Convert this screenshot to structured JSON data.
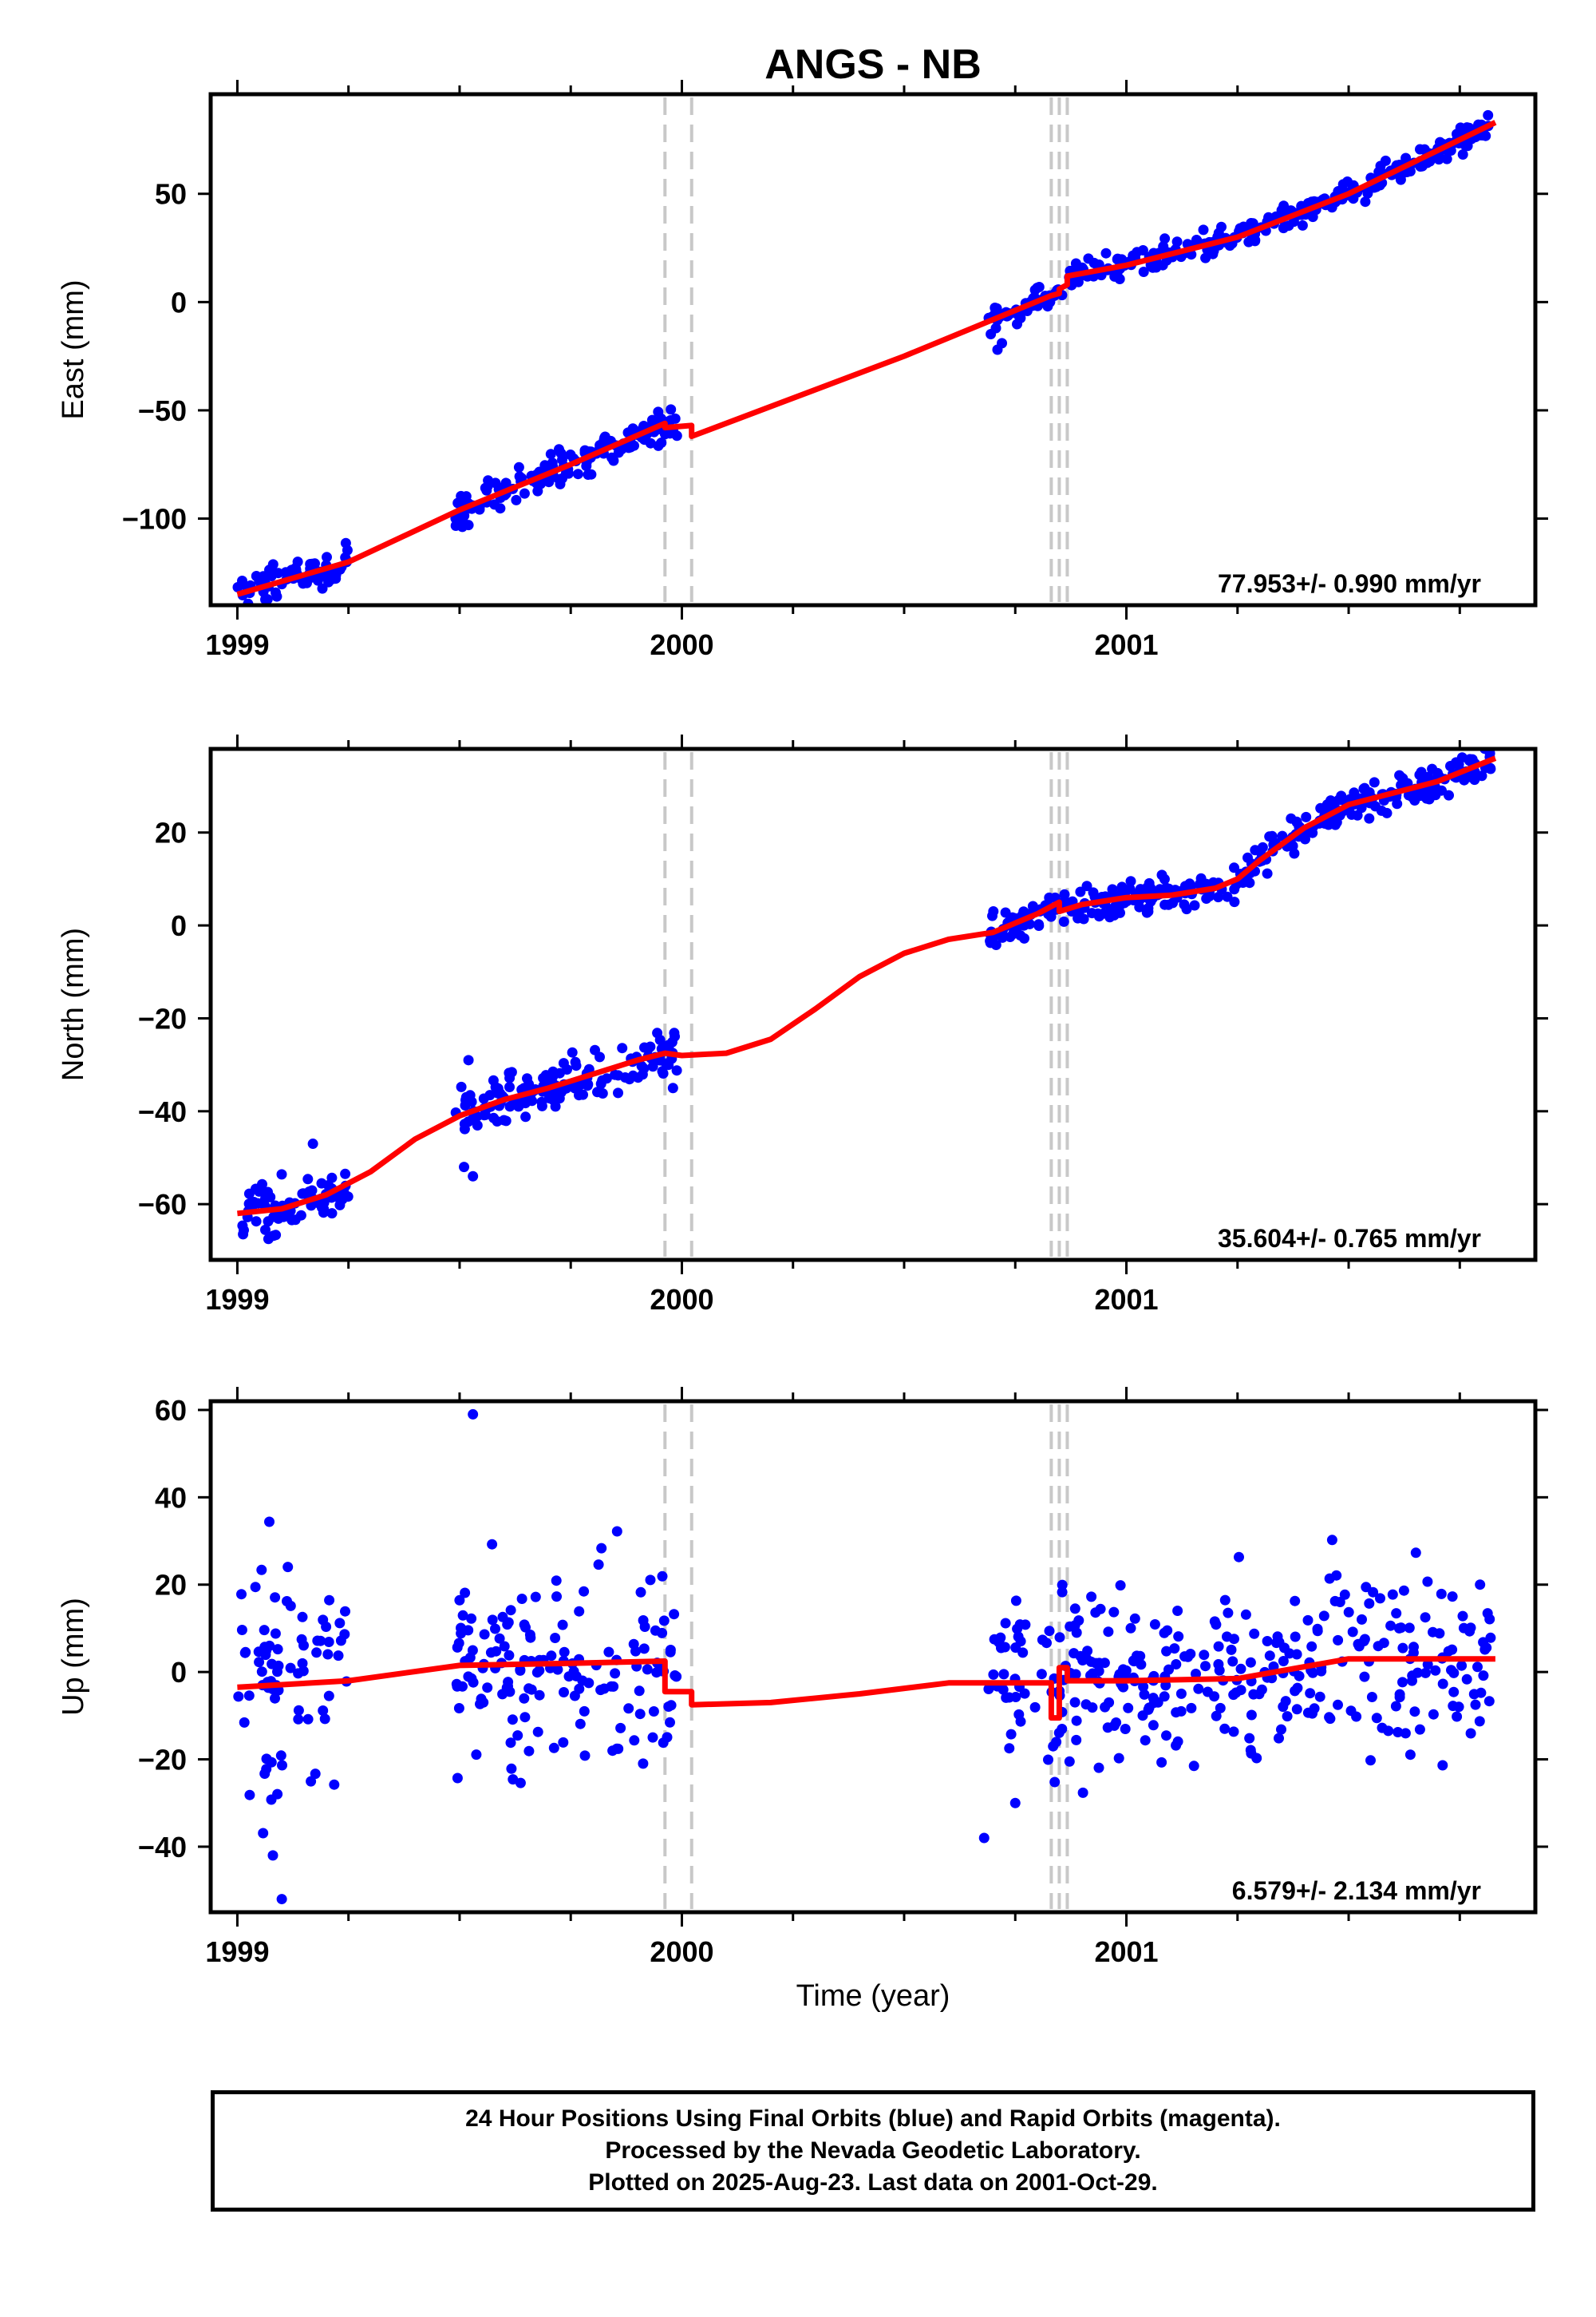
{
  "title": "ANGS - NB",
  "footer": {
    "line1": "24 Hour Positions Using Final Orbits (blue) and Rapid Orbits (magenta).",
    "line2": "Processed by the Nevada Geodetic Laboratory.",
    "line3": "Plotted on 2025-Aug-23. Last data on 2001-Oct-29."
  },
  "colors": {
    "data": "#0000ff",
    "model": "#ff0000",
    "steps": "#c8c8c8"
  },
  "chart_data": {
    "type": "scatter",
    "xlabel": "Time (year)",
    "xlim": [
      1998.94,
      2001.92
    ],
    "xticks": [
      "1999",
      "2000",
      "2001"
    ],
    "step_lines": [
      1999.962,
      2000.022,
      2000.831,
      2000.849,
      2000.867
    ],
    "panels": [
      {
        "ylabel": "East (mm)",
        "ylim": [
          -140,
          96
        ],
        "yticks": [
          50,
          0,
          -50,
          -100
        ],
        "rate_label": "77.953+/- 0.990 mm/yr",
        "data_segments": [
          {
            "start": 1999.0,
            "end": 1999.25,
            "n": 75,
            "noise": 4
          },
          {
            "start": 1999.49,
            "end": 1999.99,
            "n": 150,
            "noise": 4
          },
          {
            "start": 2000.69,
            "end": 2001.82,
            "n": 330,
            "noise": 3
          }
        ],
        "outliers": [
          [
            2000.71,
            -22
          ],
          [
            2000.72,
            -19
          ],
          [
            1999.52,
            -103
          ]
        ],
        "model": [
          [
            1999.0,
            -135
          ],
          [
            1999.25,
            -120
          ],
          [
            1999.5,
            -96
          ],
          [
            1999.75,
            -75
          ],
          [
            1999.962,
            -56
          ],
          [
            1999.962,
            -58
          ],
          [
            2000.022,
            -57
          ],
          [
            2000.022,
            -62
          ],
          [
            2000.5,
            -25
          ],
          [
            2000.831,
            3
          ],
          [
            2000.849,
            4
          ],
          [
            2000.849,
            6
          ],
          [
            2000.867,
            8
          ],
          [
            2000.867,
            12
          ],
          [
            2001.0,
            17
          ],
          [
            2001.25,
            30
          ],
          [
            2001.5,
            50
          ],
          [
            2001.83,
            83
          ]
        ]
      },
      {
        "ylabel": "North (mm)",
        "ylim": [
          -72,
          38
        ],
        "yticks": [
          20,
          0,
          -20,
          -40,
          -60
        ],
        "rate_label": "35.604+/- 0.765 mm/yr",
        "data_segments": [
          {
            "start": 1999.0,
            "end": 1999.25,
            "n": 75,
            "noise": 3
          },
          {
            "start": 1999.49,
            "end": 1999.99,
            "n": 150,
            "noise": 2.5
          },
          {
            "start": 2000.69,
            "end": 2001.82,
            "n": 330,
            "noise": 2
          }
        ],
        "outliers": [
          [
            1999.17,
            -47
          ],
          [
            1999.52,
            -29
          ],
          [
            1999.51,
            -52
          ],
          [
            1999.53,
            -54
          ],
          [
            1999.98,
            -35
          ]
        ],
        "model": [
          [
            1999.0,
            -62
          ],
          [
            1999.1,
            -61
          ],
          [
            1999.2,
            -58
          ],
          [
            1999.3,
            -53
          ],
          [
            1999.4,
            -46
          ],
          [
            1999.5,
            -41
          ],
          [
            1999.6,
            -37.5
          ],
          [
            1999.7,
            -35
          ],
          [
            1999.8,
            -32
          ],
          [
            1999.9,
            -29
          ],
          [
            1999.962,
            -27.5
          ],
          [
            2000.0,
            -28
          ],
          [
            2000.1,
            -27.5
          ],
          [
            2000.2,
            -24.5
          ],
          [
            2000.3,
            -18
          ],
          [
            2000.4,
            -11
          ],
          [
            2000.5,
            -6
          ],
          [
            2000.6,
            -3
          ],
          [
            2000.7,
            -1.5
          ],
          [
            2000.8,
            2.5
          ],
          [
            2000.849,
            5
          ],
          [
            2000.849,
            3
          ],
          [
            2000.9,
            4.5
          ],
          [
            2001.0,
            6
          ],
          [
            2001.1,
            6.5
          ],
          [
            2001.2,
            8
          ],
          [
            2001.25,
            10
          ],
          [
            2001.3,
            14
          ],
          [
            2001.4,
            21
          ],
          [
            2001.5,
            26
          ],
          [
            2001.6,
            28.5
          ],
          [
            2001.7,
            31
          ],
          [
            2001.83,
            36
          ]
        ]
      },
      {
        "ylabel": "Up (mm)",
        "ylim": [
          -55,
          62
        ],
        "yticks": [
          60,
          40,
          20,
          0,
          -20,
          -40
        ],
        "rate_label": "6.579+/- 2.134 mm/yr",
        "data_segments": [
          {
            "start": 1999.0,
            "end": 1999.25,
            "n": 75,
            "noise": 13
          },
          {
            "start": 1999.49,
            "end": 1999.99,
            "n": 150,
            "noise": 11
          },
          {
            "start": 2000.69,
            "end": 2001.82,
            "n": 330,
            "noise": 10
          }
        ],
        "outliers": [
          [
            1999.53,
            59
          ],
          [
            1999.1,
            -52
          ],
          [
            1999.08,
            -42
          ],
          [
            2000.68,
            -38
          ],
          [
            2000.75,
            -30
          ]
        ],
        "model": [
          [
            1999.0,
            -3.5
          ],
          [
            1999.25,
            -2
          ],
          [
            1999.5,
            1.5
          ],
          [
            1999.75,
            2
          ],
          [
            1999.962,
            2.5
          ],
          [
            1999.962,
            -4.5
          ],
          [
            2000.022,
            -4.5
          ],
          [
            2000.022,
            -7.5
          ],
          [
            2000.2,
            -7
          ],
          [
            2000.4,
            -5
          ],
          [
            2000.6,
            -2.5
          ],
          [
            2000.831,
            -2.5
          ],
          [
            2000.831,
            -10.5
          ],
          [
            2000.849,
            -10.5
          ],
          [
            2000.849,
            1
          ],
          [
            2000.867,
            1
          ],
          [
            2000.867,
            -2
          ],
          [
            2001.0,
            -2
          ],
          [
            2001.25,
            -1.5
          ],
          [
            2001.5,
            3
          ],
          [
            2001.83,
            3
          ]
        ]
      }
    ]
  }
}
